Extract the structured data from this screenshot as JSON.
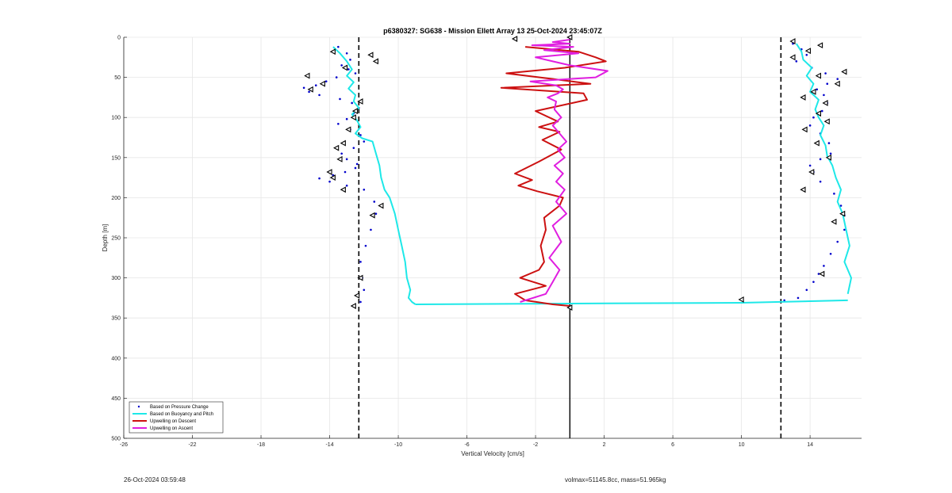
{
  "chart_data": {
    "type": "line",
    "title": "p6380327: SG638 - Mission Ellett Array 13 25-Oct-2024 23:45:07Z",
    "xlabel": "Vertical Velocity [cm/s]",
    "ylabel": "Depth [m]",
    "xlim": [
      -26,
      17
    ],
    "ylim": [
      0,
      500
    ],
    "y_reversed": true,
    "x_ticks": [
      -26,
      -22,
      -18,
      -14,
      -10,
      -6,
      -2,
      2,
      6,
      10,
      14
    ],
    "y_ticks": [
      0,
      50,
      100,
      150,
      200,
      250,
      300,
      350,
      400,
      450,
      500
    ],
    "grid": true,
    "legend_position": "bottom-left",
    "reference_lines": [
      {
        "x": -12.3,
        "style": "dashed"
      },
      {
        "x": 12.3,
        "style": "dashed"
      },
      {
        "x": 0,
        "style": "solid"
      }
    ],
    "series": [
      {
        "name": "Based on Pressure Change",
        "style": "dots",
        "color": "#0000cc",
        "segments": [
          {
            "x": [
              -13.5,
              -13.0,
              -12.8,
              -13.3,
              -12.9,
              -12.5,
              -13.6,
              -14.2,
              -14.8,
              -15.5,
              -15.2,
              -14.6,
              -13.4,
              -12.7,
              -12.3,
              -12.6,
              -13.0,
              -13.5,
              -12.8,
              -12.2,
              -12.0,
              -12.6,
              -13.3,
              -13.0,
              -12.4,
              -12.5,
              -13.1,
              -13.8,
              -14.6,
              -14.0,
              -13.0,
              -12.0,
              -11.4,
              -11.3,
              -11.6,
              -11.9,
              -12.2,
              -12.1,
              -12.0,
              -12.2
            ],
            "y": [
              12,
              20,
              28,
              35,
              40,
              45,
              50,
              55,
              60,
              63,
              68,
              72,
              77,
              82,
              88,
              95,
              102,
              108,
              115,
              122,
              130,
              138,
              145,
              152,
              158,
              163,
              168,
              172,
              176,
              180,
              185,
              190,
              205,
              220,
              240,
              260,
              280,
              300,
              315,
              330
            ]
          },
          {
            "x": [
              13.0,
              13.5,
              13.8,
              13.2,
              14.1,
              14.9,
              15.6,
              15.0,
              14.4,
              14.8,
              15.0,
              14.7,
              14.2,
              14.0,
              14.6,
              15.1,
              15.2,
              14.6,
              14.0,
              14.2,
              14.6,
              15.4,
              15.8,
              16.0,
              16.0,
              15.6,
              15.2,
              14.8,
              14.5,
              14.2,
              13.8,
              13.3,
              12.5
            ],
            "y": [
              8,
              15,
              22,
              30,
              38,
              45,
              52,
              58,
              65,
              72,
              82,
              92,
              100,
              110,
              120,
              132,
              145,
              152,
              160,
              168,
              180,
              195,
              210,
              222,
              240,
              255,
              270,
              285,
              295,
              305,
              315,
              325,
              328
            ]
          }
        ]
      },
      {
        "name": "Based on Buoyancy and Pitch",
        "style": "line",
        "color": "#1ee8e8",
        "segments": [
          {
            "x": [
              -13.8,
              -13.4,
              -13.0,
              -12.7,
              -13.0,
              -12.6,
              -12.9,
              -12.5,
              -12.6,
              -12.3,
              -12.7,
              -12.4,
              -12.2,
              -12.5,
              -12.1,
              -11.5,
              -11.3,
              -11.1,
              -11.0,
              -10.8,
              -10.5,
              -10.2,
              -10.0,
              -9.8,
              -9.6,
              -9.5,
              -9.3,
              -9.4,
              -9.2,
              -9.0
            ],
            "y": [
              12,
              20,
              30,
              40,
              48,
              56,
              64,
              72,
              80,
              88,
              96,
              104,
              112,
              120,
              126,
              130,
              145,
              160,
              175,
              190,
              200,
              220,
              240,
              260,
              280,
              300,
              315,
              325,
              330,
              333
            ]
          },
          {
            "x": [
              -9.0,
              0,
              10,
              16.2
            ],
            "y": [
              333,
              332,
              331,
              328
            ]
          },
          {
            "x": [
              16.2,
              16.4,
              16.0,
              16.3,
              16.1,
              15.9,
              15.6,
              15.8,
              15.5,
              15.3,
              15.0,
              14.9,
              14.6,
              14.8,
              14.5,
              14.3,
              14.5,
              14.0,
              14.2,
              13.8,
              14.1,
              13.6,
              13.5,
              13.2
            ],
            "y": [
              320,
              300,
              280,
              260,
              240,
              220,
              205,
              190,
              175,
              160,
              148,
              135,
              122,
              110,
              100,
              90,
              78,
              68,
              58,
              48,
              38,
              28,
              18,
              8
            ]
          }
        ]
      },
      {
        "name": "Upwelling on Descent",
        "style": "line",
        "color": "#cc1111",
        "segments": [
          {
            "x": [
              -2.6,
              0.5,
              1.5,
              2.1,
              -0.3,
              -3.7,
              -1.0,
              1.2,
              -4.0,
              0.8,
              1.0,
              -2.0,
              -0.7,
              -1.8,
              -0.6,
              -1.6,
              -0.5,
              -1.8,
              -3.2,
              -2.2,
              -3.0,
              -1.9,
              -0.4,
              -0.6,
              -1.5,
              -1.4,
              -1.7,
              -1.5,
              -1.8,
              -2.9,
              -1.4,
              -3.2,
              -2.6,
              -1.0,
              0.0
            ],
            "y": [
              12,
              18,
              25,
              30,
              38,
              45,
              52,
              58,
              63,
              70,
              78,
              92,
              105,
              112,
              118,
              128,
              140,
              155,
              170,
              178,
              185,
              192,
              200,
              210,
              225,
              240,
              260,
              280,
              290,
              300,
              310,
              320,
              328,
              333,
              335
            ]
          }
        ]
      },
      {
        "name": "Upwelling on Ascent",
        "style": "line",
        "color": "#e01ee0",
        "segments": [
          {
            "x": [
              -2.9,
              -1.4,
              -1.0,
              -0.6,
              -1.2,
              -0.5,
              -1.0,
              -0.2,
              -0.8,
              -0.3,
              -0.8,
              -0.4,
              -0.9,
              -0.3,
              -0.7,
              -0.2,
              -0.6,
              -1.0,
              -0.5,
              -0.9,
              -0.8,
              -1.3,
              -0.7,
              -0.4,
              -0.8,
              -2.3,
              1.5,
              2.2,
              0.0,
              -1.0,
              -2.0,
              0.5,
              -1.5,
              0.2,
              -2.2,
              0.0,
              -1.0,
              0.0
            ],
            "y": [
              330,
              320,
              305,
              290,
              275,
              255,
              235,
              220,
              205,
              190,
              180,
              170,
              160,
              150,
              140,
              130,
              120,
              110,
              100,
              90,
              80,
              75,
              70,
              65,
              60,
              55,
              50,
              42,
              35,
              30,
              25,
              20,
              16,
              12,
              10,
              8,
              6,
              3
            ]
          }
        ]
      }
    ],
    "markers": [
      {
        "x": -13.8,
        "y": 18
      },
      {
        "x": -11.6,
        "y": 22
      },
      {
        "x": -11.3,
        "y": 30
      },
      {
        "x": -13.1,
        "y": 38
      },
      {
        "x": -15.3,
        "y": 48
      },
      {
        "x": -14.4,
        "y": 58
      },
      {
        "x": -15.1,
        "y": 65
      },
      {
        "x": -12.2,
        "y": 80
      },
      {
        "x": -12.5,
        "y": 92
      },
      {
        "x": -12.6,
        "y": 100
      },
      {
        "x": -12.9,
        "y": 115
      },
      {
        "x": -13.2,
        "y": 132
      },
      {
        "x": -13.6,
        "y": 138
      },
      {
        "x": -13.4,
        "y": 152
      },
      {
        "x": -14.0,
        "y": 168
      },
      {
        "x": -13.8,
        "y": 175
      },
      {
        "x": -13.2,
        "y": 190
      },
      {
        "x": -11.0,
        "y": 210
      },
      {
        "x": -11.5,
        "y": 222
      },
      {
        "x": -12.2,
        "y": 300
      },
      {
        "x": -12.4,
        "y": 322
      },
      {
        "x": -12.6,
        "y": 335
      },
      {
        "x": -3.2,
        "y": 2
      },
      {
        "x": 0.0,
        "y": 0
      },
      {
        "x": 0.0,
        "y": 337
      },
      {
        "x": 10.0,
        "y": 327
      },
      {
        "x": 13.0,
        "y": 5
      },
      {
        "x": 14.6,
        "y": 10
      },
      {
        "x": 13.9,
        "y": 17
      },
      {
        "x": 13.0,
        "y": 25
      },
      {
        "x": 16.0,
        "y": 43
      },
      {
        "x": 15.6,
        "y": 58
      },
      {
        "x": 14.5,
        "y": 48
      },
      {
        "x": 14.2,
        "y": 68
      },
      {
        "x": 13.6,
        "y": 75
      },
      {
        "x": 14.9,
        "y": 82
      },
      {
        "x": 14.5,
        "y": 95
      },
      {
        "x": 15.0,
        "y": 105
      },
      {
        "x": 13.7,
        "y": 115
      },
      {
        "x": 14.4,
        "y": 132
      },
      {
        "x": 15.1,
        "y": 150
      },
      {
        "x": 14.1,
        "y": 168
      },
      {
        "x": 13.6,
        "y": 190
      },
      {
        "x": 15.9,
        "y": 220
      },
      {
        "x": 15.4,
        "y": 230
      },
      {
        "x": 14.7,
        "y": 295
      }
    ]
  },
  "footer": {
    "timestamp": "26-Oct-2024 03:59:48",
    "info": "volmax=51145.8cc, mass=51.965kg"
  }
}
